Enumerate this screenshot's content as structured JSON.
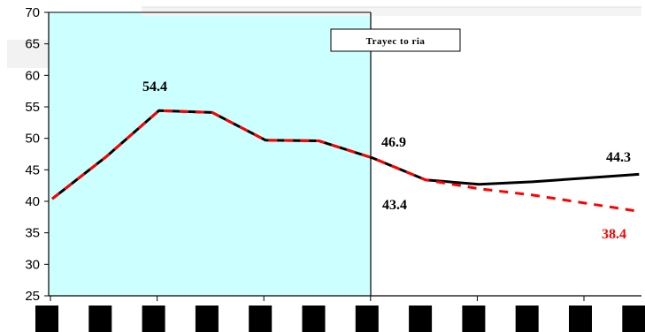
{
  "chart_data": {
    "type": "line",
    "title": "",
    "xlabel": "",
    "ylabel": "",
    "x": [
      0,
      1,
      2,
      3,
      4,
      5,
      6,
      7,
      8,
      9,
      10,
      11
    ],
    "ylim": [
      25,
      70
    ],
    "yticks": [
      "25",
      "30",
      "35",
      "40",
      "45",
      "50",
      "55",
      "60",
      "65",
      "70"
    ],
    "series": [
      {
        "name": "",
        "color": "#000000",
        "style": "solid",
        "values": [
          40.4,
          47.0,
          54.4,
          54.1,
          49.7,
          49.6,
          46.9,
          43.4,
          42.7,
          43.1,
          43.7,
          44.3
        ]
      },
      {
        "name": "",
        "color": "#ff0000",
        "style": "dashed",
        "values": [
          40.4,
          47.0,
          54.4,
          54.1,
          49.7,
          49.6,
          46.9,
          43.4,
          42.0,
          41.0,
          39.7,
          38.4
        ]
      }
    ],
    "shaded_region": {
      "from_index": 0,
      "to_index": 6,
      "color": "#ccffff"
    },
    "annotation_box": "Trayec to ria",
    "data_labels": [
      {
        "text": "54.4",
        "color": "#000000"
      },
      {
        "text": "46.9",
        "color": "#000000"
      },
      {
        "text": "43.4",
        "color": "#000000"
      },
      {
        "text": "44.3",
        "color": "#000000"
      },
      {
        "text": "38.4",
        "color": "#ff0000"
      }
    ],
    "grid": false
  }
}
